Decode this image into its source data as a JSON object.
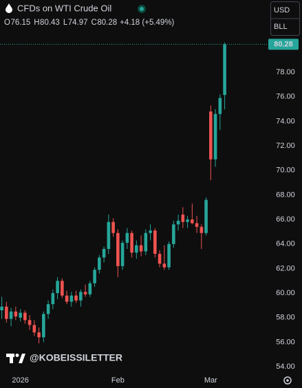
{
  "chart_data": {
    "type": "candlestick",
    "title": "CFDs on WTI Crude Oil",
    "ohlc_labels": [
      "O",
      "H",
      "L",
      "C"
    ],
    "change": "+4.18 (+5.49%)",
    "currency": "USD",
    "unit": "BLL",
    "watermark": "@KOBEISSILETTER",
    "up_color": "#26a69a",
    "down_color": "#ef5350",
    "categories": [
      null,
      null,
      null,
      null,
      "2026",
      null,
      null,
      null,
      null,
      null,
      null,
      null,
      null,
      null,
      null,
      null,
      null,
      null,
      null,
      null,
      null,
      null,
      null,
      null,
      null,
      "Feb",
      null,
      null,
      null,
      null,
      null,
      null,
      null,
      null,
      null,
      null,
      null,
      null,
      null,
      null,
      null,
      null,
      null,
      null,
      null,
      "Mar",
      null,
      null,
      null
    ],
    "open": [
      58.6,
      58.9,
      57.9,
      58.5,
      58.0,
      58.4,
      57.8,
      57.4,
      56.8,
      56.4,
      58.3,
      59.1,
      60.0,
      61.0,
      59.8,
      59.3,
      59.8,
      59.4,
      60.1,
      59.9,
      60.8,
      61.9,
      62.9,
      63.6,
      65.8,
      64.9,
      62.2,
      64.1,
      64.9,
      63.3,
      63.9,
      63.4,
      64.9,
      65.1,
      63.2,
      62.4,
      62.1,
      64.0,
      65.6,
      66.4,
      65.8,
      66.0,
      65.7,
      65.4,
      64.9,
      74.8,
      70.9,
      74.6,
      76.15
    ],
    "high": [
      59.7,
      59.3,
      58.8,
      58.9,
      58.7,
      58.6,
      58.2,
      57.8,
      57.2,
      58.5,
      59.4,
      60.3,
      61.3,
      61.2,
      60.2,
      60.1,
      60.2,
      60.3,
      60.7,
      61.0,
      62.1,
      63.1,
      63.8,
      66.4,
      66.1,
      65.2,
      64.3,
      65.3,
      65.1,
      64.3,
      64.7,
      65.2,
      65.6,
      65.3,
      63.5,
      63.9,
      64.2,
      65.9,
      66.4,
      67.0,
      66.3,
      67.3,
      66.3,
      65.6,
      67.8,
      75.3,
      75.0,
      76.2,
      80.43
    ],
    "low": [
      57.9,
      57.6,
      57.3,
      57.8,
      57.7,
      57.5,
      57.0,
      56.5,
      55.9,
      56.0,
      57.9,
      58.7,
      59.5,
      59.6,
      59.1,
      58.9,
      59.2,
      58.9,
      59.7,
      59.7,
      60.5,
      61.6,
      62.5,
      63.2,
      64.6,
      61.3,
      61.9,
      63.6,
      62.9,
      62.8,
      63.0,
      63.1,
      64.3,
      62.9,
      62.1,
      61.9,
      61.9,
      63.7,
      65.1,
      65.3,
      65.3,
      65.6,
      64.9,
      63.6,
      64.7,
      69.2,
      70.3,
      73.3,
      74.97
    ],
    "close": [
      58.9,
      57.9,
      58.5,
      58.1,
      58.4,
      57.8,
      57.4,
      56.8,
      56.4,
      58.3,
      59.1,
      60.0,
      61.0,
      59.8,
      59.3,
      59.8,
      59.4,
      60.1,
      59.9,
      60.8,
      61.9,
      62.9,
      63.6,
      65.8,
      64.9,
      62.2,
      64.1,
      64.9,
      63.3,
      63.9,
      63.4,
      64.9,
      65.1,
      63.2,
      62.4,
      62.1,
      64.0,
      65.6,
      65.9,
      65.8,
      66.0,
      65.7,
      65.4,
      64.9,
      67.6,
      70.9,
      74.6,
      75.9,
      80.28
    ],
    "ylim": [
      53.5,
      81.2
    ],
    "yticks": [
      {
        "value": 54,
        "label": "54.00"
      },
      {
        "value": 56,
        "label": "56.00"
      },
      {
        "value": 58,
        "label": "58.00"
      },
      {
        "value": 60,
        "label": "60.00"
      },
      {
        "value": 62,
        "label": "62.00"
      },
      {
        "value": 64,
        "label": "64.00"
      },
      {
        "value": 66,
        "label": "66.00"
      },
      {
        "value": 68,
        "label": "68.00"
      },
      {
        "value": 70,
        "label": "70.00"
      },
      {
        "value": 72,
        "label": "72.00"
      },
      {
        "value": 74,
        "label": "74.00"
      },
      {
        "value": 76,
        "label": "76.00"
      },
      {
        "value": 78,
        "label": "78.00"
      }
    ]
  }
}
